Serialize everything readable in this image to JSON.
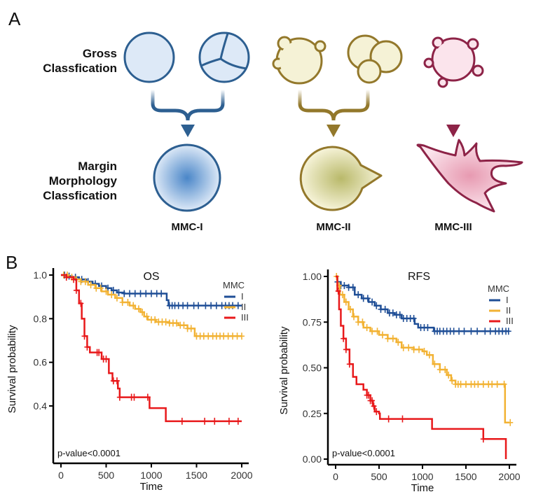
{
  "panel_a": {
    "letter": "A",
    "row_labels": {
      "gross": [
        "Gross",
        "Classfication"
      ],
      "margin": [
        "Margin",
        "Morphology",
        "Classfication"
      ]
    },
    "classes": [
      {
        "label": "MMC-I",
        "stroke": "#2d5f91",
        "fill": "#dde9f7",
        "gradient_center": "#4a86c8"
      },
      {
        "label": "MMC-II",
        "stroke": "#93782b",
        "fill": "#f5f2d6",
        "gradient_center": "#b9b96a"
      },
      {
        "label": "MMC-III",
        "stroke": "#8d2347",
        "fill": "#fbe4ec",
        "gradient_center": "#e79ab1"
      }
    ]
  },
  "panel_b": {
    "letter": "B"
  },
  "chart_data": [
    {
      "type": "line",
      "subtype": "kaplan-meier",
      "title": "OS",
      "xlabel": "Time",
      "ylabel": "Survival probability",
      "xlim": [
        0,
        2000
      ],
      "ylim": [
        0.32,
        1.0
      ],
      "xticks": [
        0,
        500,
        1000,
        1500,
        2000
      ],
      "yticks": [
        0.4,
        0.6,
        0.8,
        1.0
      ],
      "ytick_labels": [
        "0.4",
        "0.6",
        "0.8",
        "1.0"
      ],
      "legend_title": "MMC",
      "legend_position": "top-right",
      "annotation": "p-value<0.0001",
      "series": [
        {
          "name": "I",
          "color": "#1f4e96",
          "steps": [
            [
              0,
              1.0
            ],
            [
              60,
              0.995
            ],
            [
              120,
              0.99
            ],
            [
              200,
              0.98
            ],
            [
              280,
              0.97
            ],
            [
              350,
              0.96
            ],
            [
              420,
              0.95
            ],
            [
              500,
              0.94
            ],
            [
              560,
              0.93
            ],
            [
              620,
              0.92
            ],
            [
              700,
              0.915
            ],
            [
              1170,
              0.91
            ],
            [
              1170,
              0.885
            ],
            [
              1190,
              0.86
            ],
            [
              2000,
              0.86
            ]
          ],
          "censor": [
            40,
            90,
            160,
            230,
            300,
            380,
            450,
            520,
            580,
            640,
            700,
            760,
            820,
            880,
            940,
            1000,
            1060,
            1110,
            1200,
            1230,
            1260,
            1300,
            1350,
            1400,
            1470,
            1520,
            1600,
            1660,
            1720,
            1780,
            1820,
            1860,
            1900,
            1960
          ]
        },
        {
          "name": "II",
          "color": "#f2b233",
          "steps": [
            [
              0,
              1.0
            ],
            [
              80,
              0.99
            ],
            [
              150,
              0.98
            ],
            [
              220,
              0.97
            ],
            [
              300,
              0.955
            ],
            [
              380,
              0.94
            ],
            [
              450,
              0.925
            ],
            [
              520,
              0.91
            ],
            [
              600,
              0.895
            ],
            [
              680,
              0.875
            ],
            [
              760,
              0.86
            ],
            [
              820,
              0.845
            ],
            [
              880,
              0.83
            ],
            [
              920,
              0.81
            ],
            [
              960,
              0.795
            ],
            [
              1050,
              0.785
            ],
            [
              1200,
              0.78
            ],
            [
              1300,
              0.77
            ],
            [
              1400,
              0.755
            ],
            [
              1480,
              0.72
            ],
            [
              2000,
              0.72
            ]
          ],
          "censor": [
            30,
            70,
            120,
            170,
            220,
            270,
            330,
            390,
            440,
            500,
            560,
            620,
            680,
            740,
            800,
            860,
            900,
            950,
            1000,
            1040,
            1080,
            1120,
            1160,
            1200,
            1240,
            1280,
            1320,
            1360,
            1400,
            1440,
            1500,
            1540,
            1580,
            1630,
            1680,
            1720,
            1760,
            1800,
            1850,
            1900,
            1950,
            2000
          ]
        },
        {
          "name": "III",
          "color": "#e8191b",
          "steps": [
            [
              0,
              1.0
            ],
            [
              60,
              0.99
            ],
            [
              140,
              0.98
            ],
            [
              170,
              0.93
            ],
            [
              200,
              0.87
            ],
            [
              230,
              0.8
            ],
            [
              260,
              0.72
            ],
            [
              290,
              0.67
            ],
            [
              320,
              0.645
            ],
            [
              450,
              0.615
            ],
            [
              530,
              0.55
            ],
            [
              570,
              0.515
            ],
            [
              630,
              0.48
            ],
            [
              650,
              0.44
            ],
            [
              980,
              0.39
            ],
            [
              1160,
              0.33
            ],
            [
              2000,
              0.33
            ]
          ],
          "censor": [
            60,
            140,
            170,
            220,
            260,
            290,
            400,
            420,
            470,
            500,
            580,
            620,
            650,
            780,
            810,
            960,
            1340,
            1590,
            1700,
            1860,
            1960
          ]
        }
      ]
    },
    {
      "type": "line",
      "subtype": "kaplan-meier",
      "title": "RFS",
      "xlabel": "Time",
      "ylabel": "Survival probability",
      "xlim": [
        0,
        2000
      ],
      "ylim": [
        0.0,
        1.0
      ],
      "xticks": [
        0,
        500,
        1000,
        1500,
        2000
      ],
      "yticks": [
        0.0,
        0.25,
        0.5,
        0.75,
        1.0
      ],
      "ytick_labels": [
        "0.00",
        "0.25",
        "0.50",
        "0.75",
        "1.00"
      ],
      "legend_title": "MMC",
      "legend_position": "top-right",
      "annotation": "p-value<0.0001",
      "series": [
        {
          "name": "I",
          "color": "#1f4e96",
          "steps": [
            [
              0,
              1.0
            ],
            [
              20,
              0.97
            ],
            [
              60,
              0.95
            ],
            [
              150,
              0.94
            ],
            [
              220,
              0.9
            ],
            [
              300,
              0.88
            ],
            [
              380,
              0.86
            ],
            [
              450,
              0.84
            ],
            [
              520,
              0.82
            ],
            [
              600,
              0.8
            ],
            [
              680,
              0.79
            ],
            [
              760,
              0.77
            ],
            [
              880,
              0.77
            ],
            [
              910,
              0.74
            ],
            [
              950,
              0.72
            ],
            [
              1120,
              0.72
            ],
            [
              1130,
              0.7
            ],
            [
              2000,
              0.7
            ]
          ],
          "censor": [
            20,
            60,
            100,
            150,
            200,
            260,
            320,
            370,
            420,
            470,
            520,
            570,
            620,
            660,
            700,
            740,
            780,
            820,
            860,
            900,
            980,
            1020,
            1060,
            1140,
            1170,
            1200,
            1240,
            1280,
            1320,
            1360,
            1420,
            1480,
            1560,
            1630,
            1720,
            1780,
            1840,
            1880,
            1920,
            1960,
            1990
          ]
        },
        {
          "name": "II",
          "color": "#f2b233",
          "steps": [
            [
              0,
              1.0
            ],
            [
              20,
              0.95
            ],
            [
              50,
              0.9
            ],
            [
              100,
              0.86
            ],
            [
              150,
              0.82
            ],
            [
              200,
              0.78
            ],
            [
              260,
              0.75
            ],
            [
              320,
              0.72
            ],
            [
              400,
              0.7
            ],
            [
              500,
              0.68
            ],
            [
              600,
              0.66
            ],
            [
              700,
              0.64
            ],
            [
              760,
              0.61
            ],
            [
              900,
              0.6
            ],
            [
              1000,
              0.59
            ],
            [
              1050,
              0.57
            ],
            [
              1120,
              0.52
            ],
            [
              1200,
              0.49
            ],
            [
              1280,
              0.46
            ],
            [
              1330,
              0.43
            ],
            [
              1380,
              0.41
            ],
            [
              1940,
              0.41
            ],
            [
              1950,
              0.2
            ],
            [
              2000,
              0.2
            ]
          ],
          "censor": [
            10,
            40,
            80,
            120,
            170,
            210,
            260,
            310,
            360,
            420,
            480,
            540,
            600,
            660,
            720,
            780,
            840,
            900,
            960,
            1020,
            1080,
            1140,
            1200,
            1260,
            1300,
            1340,
            1380,
            1410,
            1440,
            1500,
            1560,
            1600,
            1640,
            1700,
            1760,
            1800,
            1860,
            1940,
            2010
          ]
        },
        {
          "name": "III",
          "color": "#e8191b",
          "steps": [
            [
              0,
              1.0
            ],
            [
              20,
              0.92
            ],
            [
              40,
              0.82
            ],
            [
              60,
              0.73
            ],
            [
              90,
              0.66
            ],
            [
              120,
              0.6
            ],
            [
              160,
              0.52
            ],
            [
              200,
              0.45
            ],
            [
              240,
              0.41
            ],
            [
              320,
              0.38
            ],
            [
              360,
              0.35
            ],
            [
              400,
              0.32
            ],
            [
              430,
              0.29
            ],
            [
              450,
              0.26
            ],
            [
              500,
              0.25
            ],
            [
              510,
              0.22
            ],
            [
              1100,
              0.22
            ],
            [
              1110,
              0.165
            ],
            [
              1690,
              0.165
            ],
            [
              1700,
              0.11
            ],
            [
              1950,
              0.11
            ],
            [
              1960,
              0.0
            ]
          ],
          "censor": [
            30,
            90,
            120,
            160,
            360,
            380,
            400,
            420,
            440,
            470,
            610,
            770,
            1700
          ]
        }
      ]
    }
  ]
}
